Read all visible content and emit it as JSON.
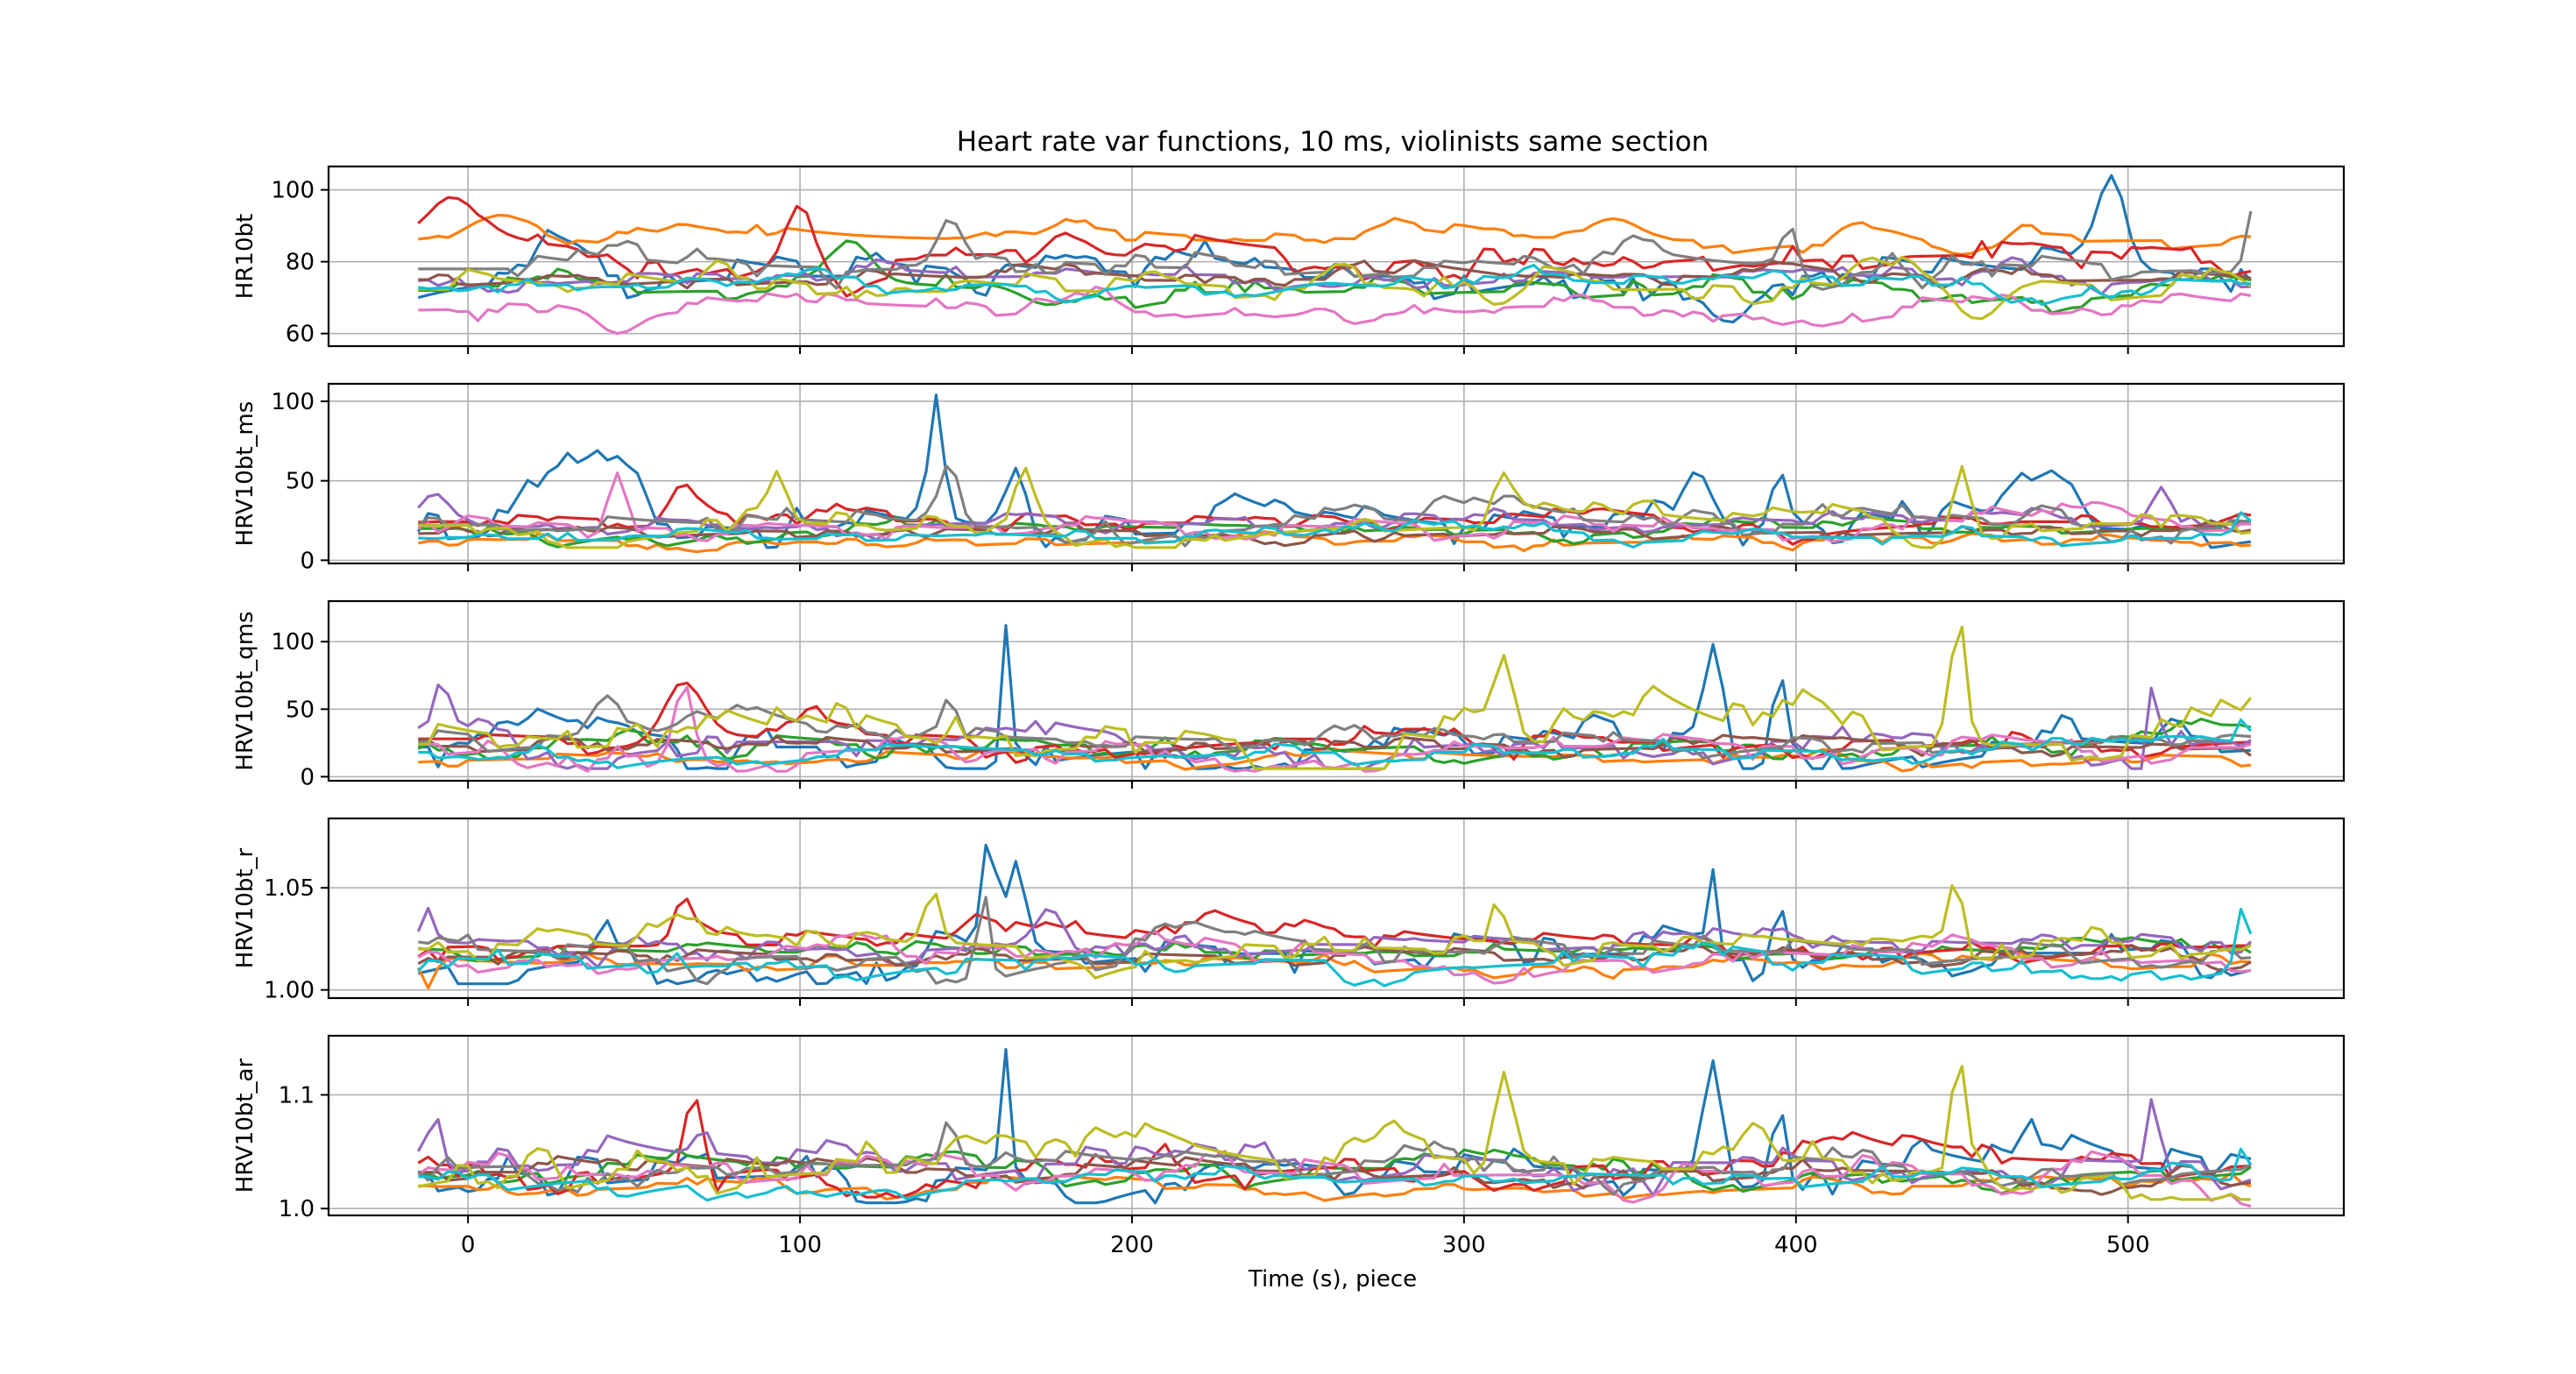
{
  "figure": {
    "title": "Heart rate var functions, 10 ms, violinists same section",
    "xlabel": "Time (s), piece"
  },
  "colors": [
    "#1f77b4",
    "#ff7f0e",
    "#2ca02c",
    "#d62728",
    "#9467bd",
    "#8c564b",
    "#e377c2",
    "#7f7f7f",
    "#bcbd22",
    "#17becf"
  ],
  "chart_data": {
    "type": "line",
    "grid": true,
    "legend": "none",
    "x_range": [
      -15,
      538
    ],
    "xlim": [
      -42,
      565
    ],
    "x_ticks": [
      0,
      100,
      200,
      300,
      400,
      500
    ],
    "x_tick_labels": [
      "0",
      "100",
      "200",
      "300",
      "400",
      "500"
    ],
    "x_sample_step": 3,
    "panels": [
      {
        "ylabel": "HR10bt",
        "ylim": [
          56.5,
          106.5
        ],
        "y_ticks": [
          60,
          80,
          100
        ],
        "y_tick_labels": [
          "60",
          "80",
          "100"
        ],
        "series_count": 10,
        "series_profiles": [
          {
            "base": 76,
            "min": 60,
            "max": 104,
            "bumps": [
              [
                155,
                70,
                4
              ],
              [
                380,
                63,
                6
              ],
              [
                495,
                104,
                6
              ]
            ]
          },
          {
            "base": 86,
            "min": 77,
            "max": 94,
            "bumps": [
              [
                10,
                93,
                14
              ],
              [
                345,
                92,
                10
              ],
              [
                450,
                82,
                12
              ]
            ]
          },
          {
            "base": 72,
            "min": 62,
            "max": 88,
            "bumps": [
              [
                115,
                86,
                8
              ],
              [
                175,
                68,
                10
              ]
            ]
          },
          {
            "base": 82,
            "min": 68,
            "max": 100,
            "bumps": [
              [
                -5,
                98,
                10
              ],
              [
                100,
                96,
                6
              ],
              [
                180,
                88,
                8
              ]
            ]
          },
          {
            "base": 76,
            "min": 66,
            "max": 86,
            "bumps": [
              [
                200,
                76,
                10
              ]
            ]
          },
          {
            "base": 75,
            "min": 68,
            "max": 84,
            "bumps": [
              [
                320,
                76,
                10
              ]
            ]
          },
          {
            "base": 67,
            "min": 58,
            "max": 78,
            "bumps": [
              [
                45,
                60,
                8
              ],
              [
                300,
                66,
                12
              ]
            ]
          },
          {
            "base": 78,
            "min": 66,
            "max": 96,
            "bumps": [
              [
                145,
                92,
                5
              ],
              [
                398,
                90,
                4
              ],
              [
                538,
                96,
                3
              ]
            ]
          },
          {
            "base": 72,
            "min": 60,
            "max": 86,
            "bumps": [
              [
                310,
                68,
                8
              ],
              [
                455,
                64,
                10
              ]
            ]
          },
          {
            "base": 74,
            "min": 66,
            "max": 82,
            "bumps": [
              [
                260,
                74,
                12
              ]
            ]
          }
        ]
      },
      {
        "ylabel": "HRV10bt_ms",
        "ylim": [
          -2,
          111
        ],
        "y_ticks": [
          0,
          50,
          100
        ],
        "y_tick_labels": [
          "0",
          "50",
          "100"
        ],
        "series_count": 10,
        "series_profiles": [
          {
            "base": 18,
            "min": 8,
            "max": 106,
            "bumps": [
              [
                141,
                104,
                3
              ],
              [
                165,
                58,
                5
              ],
              [
                370,
                56,
                6
              ],
              [
                395,
                58,
                3
              ]
            ]
          },
          {
            "base": 12,
            "min": 3,
            "max": 30,
            "bumps": []
          },
          {
            "base": 20,
            "min": 8,
            "max": 40,
            "bumps": []
          },
          {
            "base": 24,
            "min": 10,
            "max": 52,
            "bumps": [
              [
                65,
                48,
                6
              ]
            ]
          },
          {
            "base": 24,
            "min": 10,
            "max": 48,
            "bumps": [
              [
                -10,
                42,
                6
              ],
              [
                510,
                46,
                4
              ]
            ]
          },
          {
            "base": 18,
            "min": 8,
            "max": 36,
            "bumps": []
          },
          {
            "base": 20,
            "min": 6,
            "max": 56,
            "bumps": [
              [
                45,
                55,
                4
              ]
            ]
          },
          {
            "base": 22,
            "min": 8,
            "max": 66,
            "bumps": [
              [
                145,
                62,
                4
              ]
            ]
          },
          {
            "base": 22,
            "min": 8,
            "max": 62,
            "bumps": [
              [
                93,
                56,
                4
              ],
              [
                168,
                58,
                4
              ],
              [
                312,
                55,
                4
              ],
              [
                450,
                59,
                4
              ]
            ]
          },
          {
            "base": 14,
            "min": 4,
            "max": 36,
            "bumps": [
              [
                535,
                32,
                3
              ]
            ]
          }
        ]
      },
      {
        "ylabel": "HRV10bt_qms",
        "ylim": [
          -3,
          130
        ],
        "y_ticks": [
          0,
          50,
          100
        ],
        "y_tick_labels": [
          "0",
          "50",
          "100"
        ],
        "series_count": 10,
        "series_profiles": [
          {
            "base": 22,
            "min": 6,
            "max": 116,
            "bumps": [
              [
                162,
                112,
                2
              ],
              [
                375,
                98,
                4
              ],
              [
                395,
                78,
                3
              ]
            ]
          },
          {
            "base": 14,
            "min": 2,
            "max": 35,
            "bumps": []
          },
          {
            "base": 24,
            "min": 6,
            "max": 60,
            "bumps": []
          },
          {
            "base": 28,
            "min": 6,
            "max": 76,
            "bumps": [
              [
                65,
                70,
                8
              ]
            ]
          },
          {
            "base": 26,
            "min": 6,
            "max": 84,
            "bumps": [
              [
                -8,
                72,
                3
              ],
              [
                508,
                82,
                2
              ]
            ]
          },
          {
            "base": 22,
            "min": 6,
            "max": 50,
            "bumps": []
          },
          {
            "base": 22,
            "min": 4,
            "max": 72,
            "bumps": [
              [
                65,
                70,
                4
              ]
            ]
          },
          {
            "base": 26,
            "min": 6,
            "max": 64,
            "bumps": [
              [
                42,
                60,
                6
              ],
              [
                145,
                60,
                3
              ]
            ]
          },
          {
            "base": 24,
            "min": 6,
            "max": 122,
            "bumps": [
              [
                312,
                90,
                4
              ],
              [
                449,
                120,
                3
              ]
            ]
          },
          {
            "base": 18,
            "min": 4,
            "max": 48,
            "bumps": [
              [
                535,
                46,
                2
              ]
            ]
          }
        ]
      },
      {
        "ylabel": "HRV10bt_r",
        "ylim": [
          0.996,
          1.084
        ],
        "y_ticks": [
          1.0,
          1.05
        ],
        "y_tick_labels": [
          "1.00",
          "1.05"
        ],
        "series_count": 10,
        "series_profiles": [
          {
            "base": 1.018,
            "min": 1.003,
            "max": 1.081,
            "bumps": [
              [
                157,
                1.078,
                3
              ],
              [
                165,
                1.063,
                4
              ],
              [
                375,
                1.059,
                2
              ],
              [
                395,
                1.042,
                3
              ]
            ]
          },
          {
            "base": 1.012,
            "min": 1.0,
            "max": 1.025,
            "bumps": [
              [
                -12,
                1.001,
                2
              ]
            ]
          },
          {
            "base": 1.018,
            "min": 1.006,
            "max": 1.035,
            "bumps": []
          },
          {
            "base": 1.022,
            "min": 1.008,
            "max": 1.05,
            "bumps": [
              [
                65,
                1.046,
                4
              ]
            ]
          },
          {
            "base": 1.022,
            "min": 1.008,
            "max": 1.046,
            "bumps": [
              [
                -12,
                1.04,
                3
              ],
              [
                175,
                1.04,
                6
              ]
            ]
          },
          {
            "base": 1.016,
            "min": 1.004,
            "max": 1.03,
            "bumps": []
          },
          {
            "base": 1.016,
            "min": 1.002,
            "max": 1.04,
            "bumps": []
          },
          {
            "base": 1.018,
            "min": 1.003,
            "max": 1.06,
            "bumps": [
              [
                155,
                1.056,
                2
              ]
            ]
          },
          {
            "base": 1.02,
            "min": 1.004,
            "max": 1.056,
            "bumps": [
              [
                140,
                1.05,
                3
              ],
              [
                310,
                1.047,
                2
              ],
              [
                448,
                1.055,
                3
              ]
            ]
          },
          {
            "base": 1.014,
            "min": 1.002,
            "max": 1.048,
            "bumps": [
              [
                535,
                1.046,
                2
              ]
            ]
          }
        ]
      },
      {
        "ylabel": "HRV10bt_ar",
        "ylim": [
          0.994,
          1.152
        ],
        "y_ticks": [
          1.0,
          1.1
        ],
        "y_tick_labels": [
          "1.0",
          "1.1"
        ],
        "series_count": 10,
        "series_profiles": [
          {
            "base": 1.03,
            "min": 1.005,
            "max": 1.143,
            "bumps": [
              [
                162,
                1.14,
                2
              ],
              [
                375,
                1.13,
                4
              ],
              [
                395,
                1.09,
                3
              ]
            ]
          },
          {
            "base": 1.02,
            "min": 0.997,
            "max": 1.045,
            "bumps": []
          },
          {
            "base": 1.035,
            "min": 1.01,
            "max": 1.08,
            "bumps": []
          },
          {
            "base": 1.04,
            "min": 1.01,
            "max": 1.108,
            "bumps": [
              [
                68,
                1.1,
                4
              ]
            ]
          },
          {
            "base": 1.04,
            "min": 1.01,
            "max": 1.118,
            "bumps": [
              [
                -10,
                1.085,
                3
              ],
              [
                508,
                1.115,
                2
              ]
            ]
          },
          {
            "base": 1.032,
            "min": 1.008,
            "max": 1.07,
            "bumps": []
          },
          {
            "base": 1.03,
            "min": 1.002,
            "max": 1.09,
            "bumps": []
          },
          {
            "base": 1.038,
            "min": 1.01,
            "max": 1.09,
            "bumps": [
              [
                145,
                1.08,
                3
              ]
            ]
          },
          {
            "base": 1.035,
            "min": 1.008,
            "max": 1.138,
            "bumps": [
              [
                312,
                1.12,
                4
              ],
              [
                449,
                1.135,
                3
              ]
            ]
          },
          {
            "base": 1.028,
            "min": 1.004,
            "max": 1.065,
            "bumps": [
              [
                535,
                1.06,
                2
              ]
            ]
          }
        ]
      }
    ]
  }
}
